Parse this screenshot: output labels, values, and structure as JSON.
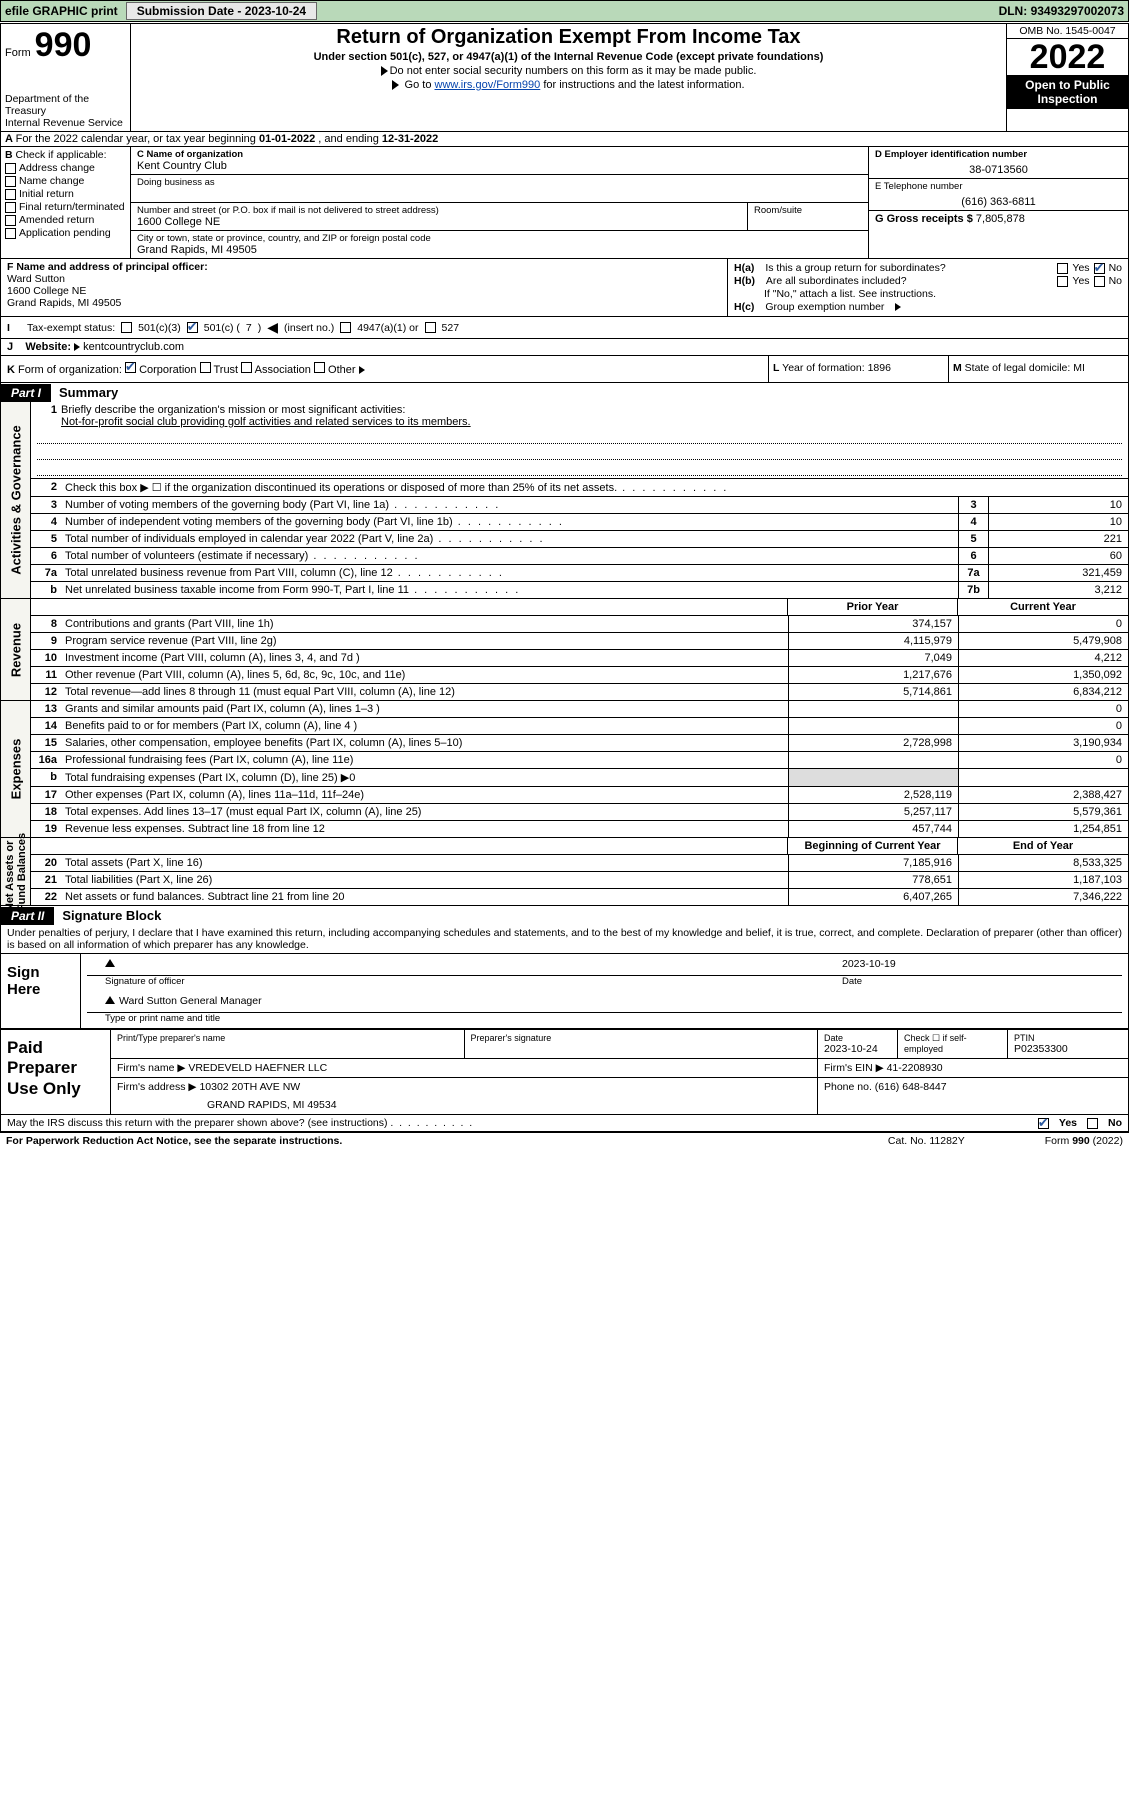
{
  "topbar": {
    "efile": "efile GRAPHIC print",
    "subdate_label": "Submission Date - ",
    "subdate": "2023-10-24",
    "dln_label": "DLN: ",
    "dln": "93493297002073"
  },
  "header": {
    "form_word": "Form",
    "form_num": "990",
    "dept": "Department of the Treasury\nInternal Revenue Service",
    "title": "Return of Organization Exempt From Income Tax",
    "subtitle": "Under section 501(c), 527, or 4947(a)(1) of the Internal Revenue Code (except private foundations)",
    "note1": "Do not enter social security numbers on this form as it may be made public.",
    "note2_pre": "Go to ",
    "note2_link": "www.irs.gov/Form990",
    "note2_post": " for instructions and the latest information.",
    "omb": "OMB No. 1545-0047",
    "year": "2022",
    "open": "Open to Public Inspection"
  },
  "rowA": {
    "text_pre": "For the 2022 calendar year, or tax year beginning ",
    "begin": "01-01-2022",
    "mid": " , and ending ",
    "end": "12-31-2022"
  },
  "B": {
    "title": "Check if applicable:",
    "items": [
      "Address change",
      "Name change",
      "Initial return",
      "Final return/terminated",
      "Amended return",
      "Application pending"
    ]
  },
  "C": {
    "name_lbl": "C Name of organization",
    "name": "Kent Country Club",
    "dba_lbl": "Doing business as",
    "addr_lbl": "Number and street (or P.O. box if mail is not delivered to street address)",
    "room_lbl": "Room/suite",
    "addr": "1600 College NE",
    "city_lbl": "City or town, state or province, country, and ZIP or foreign postal code",
    "city": "Grand Rapids, MI  49505"
  },
  "D": {
    "lbl": "D Employer identification number",
    "val": "38-0713560"
  },
  "E": {
    "lbl": "E Telephone number",
    "val": "(616) 363-6811"
  },
  "G": {
    "lbl": "G Gross receipts $ ",
    "val": "7,805,878"
  },
  "F": {
    "lbl": "F  Name and address of principal officer:",
    "name": "Ward Sutton",
    "addr1": "1600 College NE",
    "addr2": "Grand Rapids, MI  49505"
  },
  "H": {
    "a": "Is this a group return for subordinates?",
    "b": "Are all subordinates included?",
    "b_note": "If \"No,\" attach a list. See instructions.",
    "c": "Group exemption number",
    "yes": "Yes",
    "no": "No"
  },
  "I": {
    "lbl": "Tax-exempt status:",
    "o1": "501(c)(3)",
    "o2_pre": "501(c) (",
    "o2_num": "7",
    "o2_post": ") ",
    "o2_insert": "(insert no.)",
    "o3": "4947(a)(1) or",
    "o4": "527"
  },
  "J": {
    "lbl": "Website:",
    "val": "kentcountryclub.com"
  },
  "K": {
    "lbl": "Form of organization:",
    "o1": "Corporation",
    "o2": "Trust",
    "o3": "Association",
    "o4": "Other"
  },
  "L": {
    "lbl": "Year of formation: ",
    "val": "1896"
  },
  "M": {
    "lbl": "State of legal domicile: ",
    "val": "MI"
  },
  "part1": {
    "tag": "Part I",
    "title": "Summary"
  },
  "mission": {
    "n": "1",
    "lbl": "Briefly describe the organization's mission or most significant activities:",
    "text": "Not-for-profit social club providing golf activities and related services to its members."
  },
  "lines_gov": [
    {
      "n": "2",
      "t": "Check this box ▶ ☐  if the organization discontinued its operations or disposed of more than 25% of its net assets.",
      "nc": "",
      "v": ""
    },
    {
      "n": "3",
      "t": "Number of voting members of the governing body (Part VI, line 1a)",
      "nc": "3",
      "v": "10"
    },
    {
      "n": "4",
      "t": "Number of independent voting members of the governing body (Part VI, line 1b)",
      "nc": "4",
      "v": "10"
    },
    {
      "n": "5",
      "t": "Total number of individuals employed in calendar year 2022 (Part V, line 2a)",
      "nc": "5",
      "v": "221"
    },
    {
      "n": "6",
      "t": "Total number of volunteers (estimate if necessary)",
      "nc": "6",
      "v": "60"
    },
    {
      "n": "7a",
      "t": "Total unrelated business revenue from Part VIII, column (C), line 12",
      "nc": "7a",
      "v": "321,459"
    },
    {
      "n": "b",
      "t": "Net unrelated business taxable income from Form 990-T, Part I, line 11",
      "nc": "7b",
      "v": "3,212"
    }
  ],
  "colhdr": {
    "c1": "Prior Year",
    "c2": "Current Year"
  },
  "lines_rev": [
    {
      "n": "8",
      "t": "Contributions and grants (Part VIII, line 1h)",
      "v1": "374,157",
      "v2": "0"
    },
    {
      "n": "9",
      "t": "Program service revenue (Part VIII, line 2g)",
      "v1": "4,115,979",
      "v2": "5,479,908"
    },
    {
      "n": "10",
      "t": "Investment income (Part VIII, column (A), lines 3, 4, and 7d )",
      "v1": "7,049",
      "v2": "4,212"
    },
    {
      "n": "11",
      "t": "Other revenue (Part VIII, column (A), lines 5, 6d, 8c, 9c, 10c, and 11e)",
      "v1": "1,217,676",
      "v2": "1,350,092"
    },
    {
      "n": "12",
      "t": "Total revenue—add lines 8 through 11 (must equal Part VIII, column (A), line 12)",
      "v1": "5,714,861",
      "v2": "6,834,212"
    }
  ],
  "lines_exp": [
    {
      "n": "13",
      "t": "Grants and similar amounts paid (Part IX, column (A), lines 1–3 )",
      "v1": "",
      "v2": "0"
    },
    {
      "n": "14",
      "t": "Benefits paid to or for members (Part IX, column (A), line 4 )",
      "v1": "",
      "v2": "0"
    },
    {
      "n": "15",
      "t": "Salaries, other compensation, employee benefits (Part IX, column (A), lines 5–10)",
      "v1": "2,728,998",
      "v2": "3,190,934"
    },
    {
      "n": "16a",
      "t": "Professional fundraising fees (Part IX, column (A), line 11e)",
      "v1": "",
      "v2": "0"
    },
    {
      "n": "b",
      "t": "Total fundraising expenses (Part IX, column (D), line 25) ▶0",
      "v1": "",
      "v2": "",
      "shaded": true
    },
    {
      "n": "17",
      "t": "Other expenses (Part IX, column (A), lines 11a–11d, 11f–24e)",
      "v1": "2,528,119",
      "v2": "2,388,427"
    },
    {
      "n": "18",
      "t": "Total expenses. Add lines 13–17 (must equal Part IX, column (A), line 25)",
      "v1": "5,257,117",
      "v2": "5,579,361"
    },
    {
      "n": "19",
      "t": "Revenue less expenses. Subtract line 18 from line 12",
      "v1": "457,744",
      "v2": "1,254,851"
    }
  ],
  "colhdr2": {
    "c1": "Beginning of Current Year",
    "c2": "End of Year"
  },
  "lines_net": [
    {
      "n": "20",
      "t": "Total assets (Part X, line 16)",
      "v1": "7,185,916",
      "v2": "8,533,325"
    },
    {
      "n": "21",
      "t": "Total liabilities (Part X, line 26)",
      "v1": "778,651",
      "v2": "1,187,103"
    },
    {
      "n": "22",
      "t": "Net assets or fund balances. Subtract line 21 from line 20",
      "v1": "6,407,265",
      "v2": "7,346,222"
    }
  ],
  "vtabs": {
    "gov": "Activities & Governance",
    "rev": "Revenue",
    "exp": "Expenses",
    "net": "Net Assets or\nFund Balances"
  },
  "part2": {
    "tag": "Part II",
    "title": "Signature Block"
  },
  "sig": {
    "pen": "Under penalties of perjury, I declare that I have examined this return, including accompanying schedules and statements, and to the best of my knowledge and belief, it is true, correct, and complete. Declaration of preparer (other than officer) is based on all information of which preparer has any knowledge.",
    "here": "Sign Here",
    "officer_lbl": "Signature of officer",
    "date_lbl": "Date",
    "date": "2023-10-19",
    "name": "Ward Sutton  General Manager",
    "name_lbl": "Type or print name and title"
  },
  "paid": {
    "title": "Paid Preparer Use Only",
    "h1": "Print/Type preparer's name",
    "h2": "Preparer's signature",
    "h3": "Date",
    "h3v": "2023-10-24",
    "h4": "Check ☐ if self-employed",
    "h5": "PTIN",
    "h5v": "P02353300",
    "firm_lbl": "Firm's name    ▶",
    "firm": "VREDEVELD HAEFNER LLC",
    "ein_lbl": "Firm's EIN ▶",
    "ein": "41-2208930",
    "addr_lbl": "Firm's address ▶",
    "addr1": "10302 20TH AVE NW",
    "addr2": "GRAND RAPIDS, MI  49534",
    "phone_lbl": "Phone no. ",
    "phone": "(616) 648-8447"
  },
  "footer": {
    "discuss": "May the IRS discuss this return with the preparer shown above? (see instructions)",
    "yes": "Yes",
    "no": "No",
    "pra": "For Paperwork Reduction Act Notice, see the separate instructions.",
    "cat": "Cat. No. 11282Y",
    "form": "Form 990 (2022)"
  }
}
